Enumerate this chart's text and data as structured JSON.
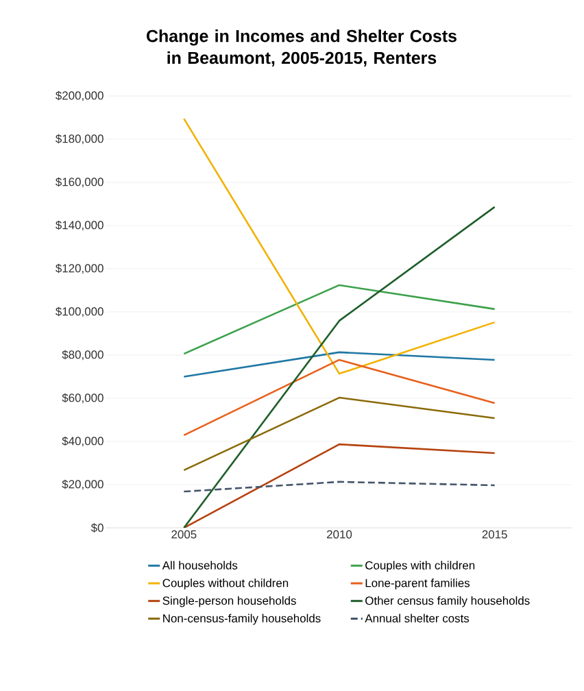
{
  "chart_data": {
    "type": "line",
    "title": "Change in Incomes and Shelter Costs in Beaumont, 2005-2015, Renters",
    "categories": [
      "2005",
      "2010",
      "2015"
    ],
    "series": [
      {
        "name": "All households",
        "color": "#1f77a4",
        "values": [
          70000,
          81300,
          77800
        ]
      },
      {
        "name": "Couples with children",
        "color": "#3ca14a",
        "values": [
          80600,
          112400,
          101300
        ]
      },
      {
        "name": "Couples without children",
        "color": "#f2b200",
        "values": [
          189500,
          71400,
          95200
        ]
      },
      {
        "name": "Lone-parent families",
        "color": "#e8601c",
        "values": [
          42900,
          77800,
          57800
        ]
      },
      {
        "name": "Single-person households",
        "color": "#b5420e",
        "values": [
          0,
          38700,
          34600
        ]
      },
      {
        "name": "Other census family households",
        "color": "#1e5e2a",
        "values": [
          0,
          95900,
          148600
        ]
      },
      {
        "name": "Non-census-family households",
        "color": "#8b6a08",
        "values": [
          26700,
          60300,
          50800
        ]
      },
      {
        "name": "Annual shelter costs",
        "color": "#44546a",
        "values": [
          16800,
          21300,
          19700
        ],
        "line_style": "dashed"
      }
    ],
    "ylim": [
      0,
      200000
    ],
    "yticks": [
      {
        "value": 0,
        "label": "$0"
      },
      {
        "value": 20000,
        "label": "$20,000"
      },
      {
        "value": 40000,
        "label": "$40,000"
      },
      {
        "value": 60000,
        "label": "$60,000"
      },
      {
        "value": 80000,
        "label": "$80,000"
      },
      {
        "value": 100000,
        "label": "$100,000"
      },
      {
        "value": 120000,
        "label": "$120,000"
      },
      {
        "value": 140000,
        "label": "$140,000"
      },
      {
        "value": 160000,
        "label": "$160,000"
      },
      {
        "value": 180000,
        "label": "$180,000"
      },
      {
        "value": 200000,
        "label": "$200,000"
      }
    ],
    "grid": "y",
    "legend": "bottom",
    "marker": "none",
    "line_style": "solid"
  }
}
